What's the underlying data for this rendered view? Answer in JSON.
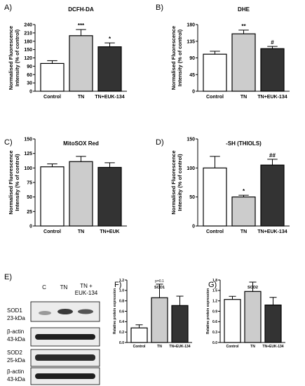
{
  "blot": {
    "panel_label": "E)",
    "lanes": [
      "C",
      "TN",
      "TN + EUK-134"
    ],
    "rows": [
      {
        "protein": "SOD1",
        "size": "23-kDa"
      },
      {
        "protein": "β-actin",
        "size": "43-kDa"
      },
      {
        "protein": "SOD2",
        "size": "25-kDa"
      },
      {
        "protein": "β-actin",
        "size": "43-kDa"
      }
    ]
  },
  "colors": {
    "control": "#ffffff",
    "tn": "#cccccc",
    "euk": "#333333",
    "stroke": "#000000"
  },
  "chart_data": [
    {
      "panel": "A)",
      "type": "bar",
      "title": "DCFH-DA",
      "ylabel": "Normalised Fluorescence Intensity (% of control)",
      "categories": [
        "Control",
        "TN",
        "TN+EUK-134"
      ],
      "values": [
        100,
        200,
        160
      ],
      "errors": [
        10,
        22,
        14
      ],
      "significance": [
        "",
        "***",
        "*"
      ],
      "ylim": [
        0,
        240
      ],
      "yticks": [
        0,
        30,
        60,
        90,
        120,
        150,
        180,
        210,
        240
      ]
    },
    {
      "panel": "B)",
      "type": "bar",
      "title": "DHE",
      "ylabel": "Normalised Fluorescence Intensity (% of control)",
      "categories": [
        "Control",
        "TN",
        "TN+EUK-134"
      ],
      "values": [
        100,
        155,
        115
      ],
      "errors": [
        8,
        10,
        6
      ],
      "significance": [
        "",
        "**",
        "#"
      ],
      "ylim": [
        0,
        180
      ],
      "yticks": [
        0,
        45,
        90,
        135,
        180
      ]
    },
    {
      "panel": "C)",
      "type": "bar",
      "title": "MitoSOX Red",
      "ylabel": "Normalised Fluorescence Intensity (% of control)",
      "categories": [
        "Control",
        "TN",
        "TN+EUK"
      ],
      "values": [
        102,
        111,
        101
      ],
      "errors": [
        5,
        9,
        8
      ],
      "significance": [
        "",
        "",
        ""
      ],
      "ylim": [
        0,
        150
      ],
      "yticks": [
        0,
        25,
        50,
        75,
        100,
        125,
        150
      ]
    },
    {
      "panel": "D)",
      "type": "bar",
      "title": "-SH (THIOLS)",
      "ylabel": "Normalised Fluorescence Intensity (% of control)",
      "categories": [
        "Control",
        "TN",
        "TN+EUK-134"
      ],
      "values": [
        100,
        50,
        105
      ],
      "errors": [
        20,
        3,
        10
      ],
      "significance": [
        "",
        "*",
        "##"
      ],
      "ylim": [
        0,
        150
      ],
      "yticks": [
        0,
        50,
        100,
        150
      ]
    },
    {
      "panel": "F)",
      "type": "bar",
      "title": "SOD1",
      "ylabel": "Relative protein expression",
      "categories": [
        "Control",
        "TN",
        "TN+EUK-134"
      ],
      "values": [
        0.28,
        0.86,
        0.71
      ],
      "errors": [
        0.06,
        0.26,
        0.18
      ],
      "significance": [
        "",
        "p=0.1",
        ""
      ],
      "ylim": [
        0,
        1.2
      ],
      "yticks": [
        0.0,
        0.2,
        0.4,
        0.6,
        0.8,
        1.0,
        1.2
      ]
    },
    {
      "panel": "G)",
      "type": "bar",
      "title": "SOD2",
      "ylabel": "Relative protein expression",
      "categories": [
        "Control",
        "TN",
        "TN+EUK-134"
      ],
      "values": [
        1.24,
        1.47,
        1.08
      ],
      "errors": [
        0.09,
        0.27,
        0.22
      ],
      "significance": [
        "",
        "",
        ""
      ],
      "ylim": [
        0,
        1.8
      ],
      "yticks": [
        0.0,
        0.3,
        0.6,
        0.9,
        1.2,
        1.5,
        1.8
      ]
    }
  ]
}
